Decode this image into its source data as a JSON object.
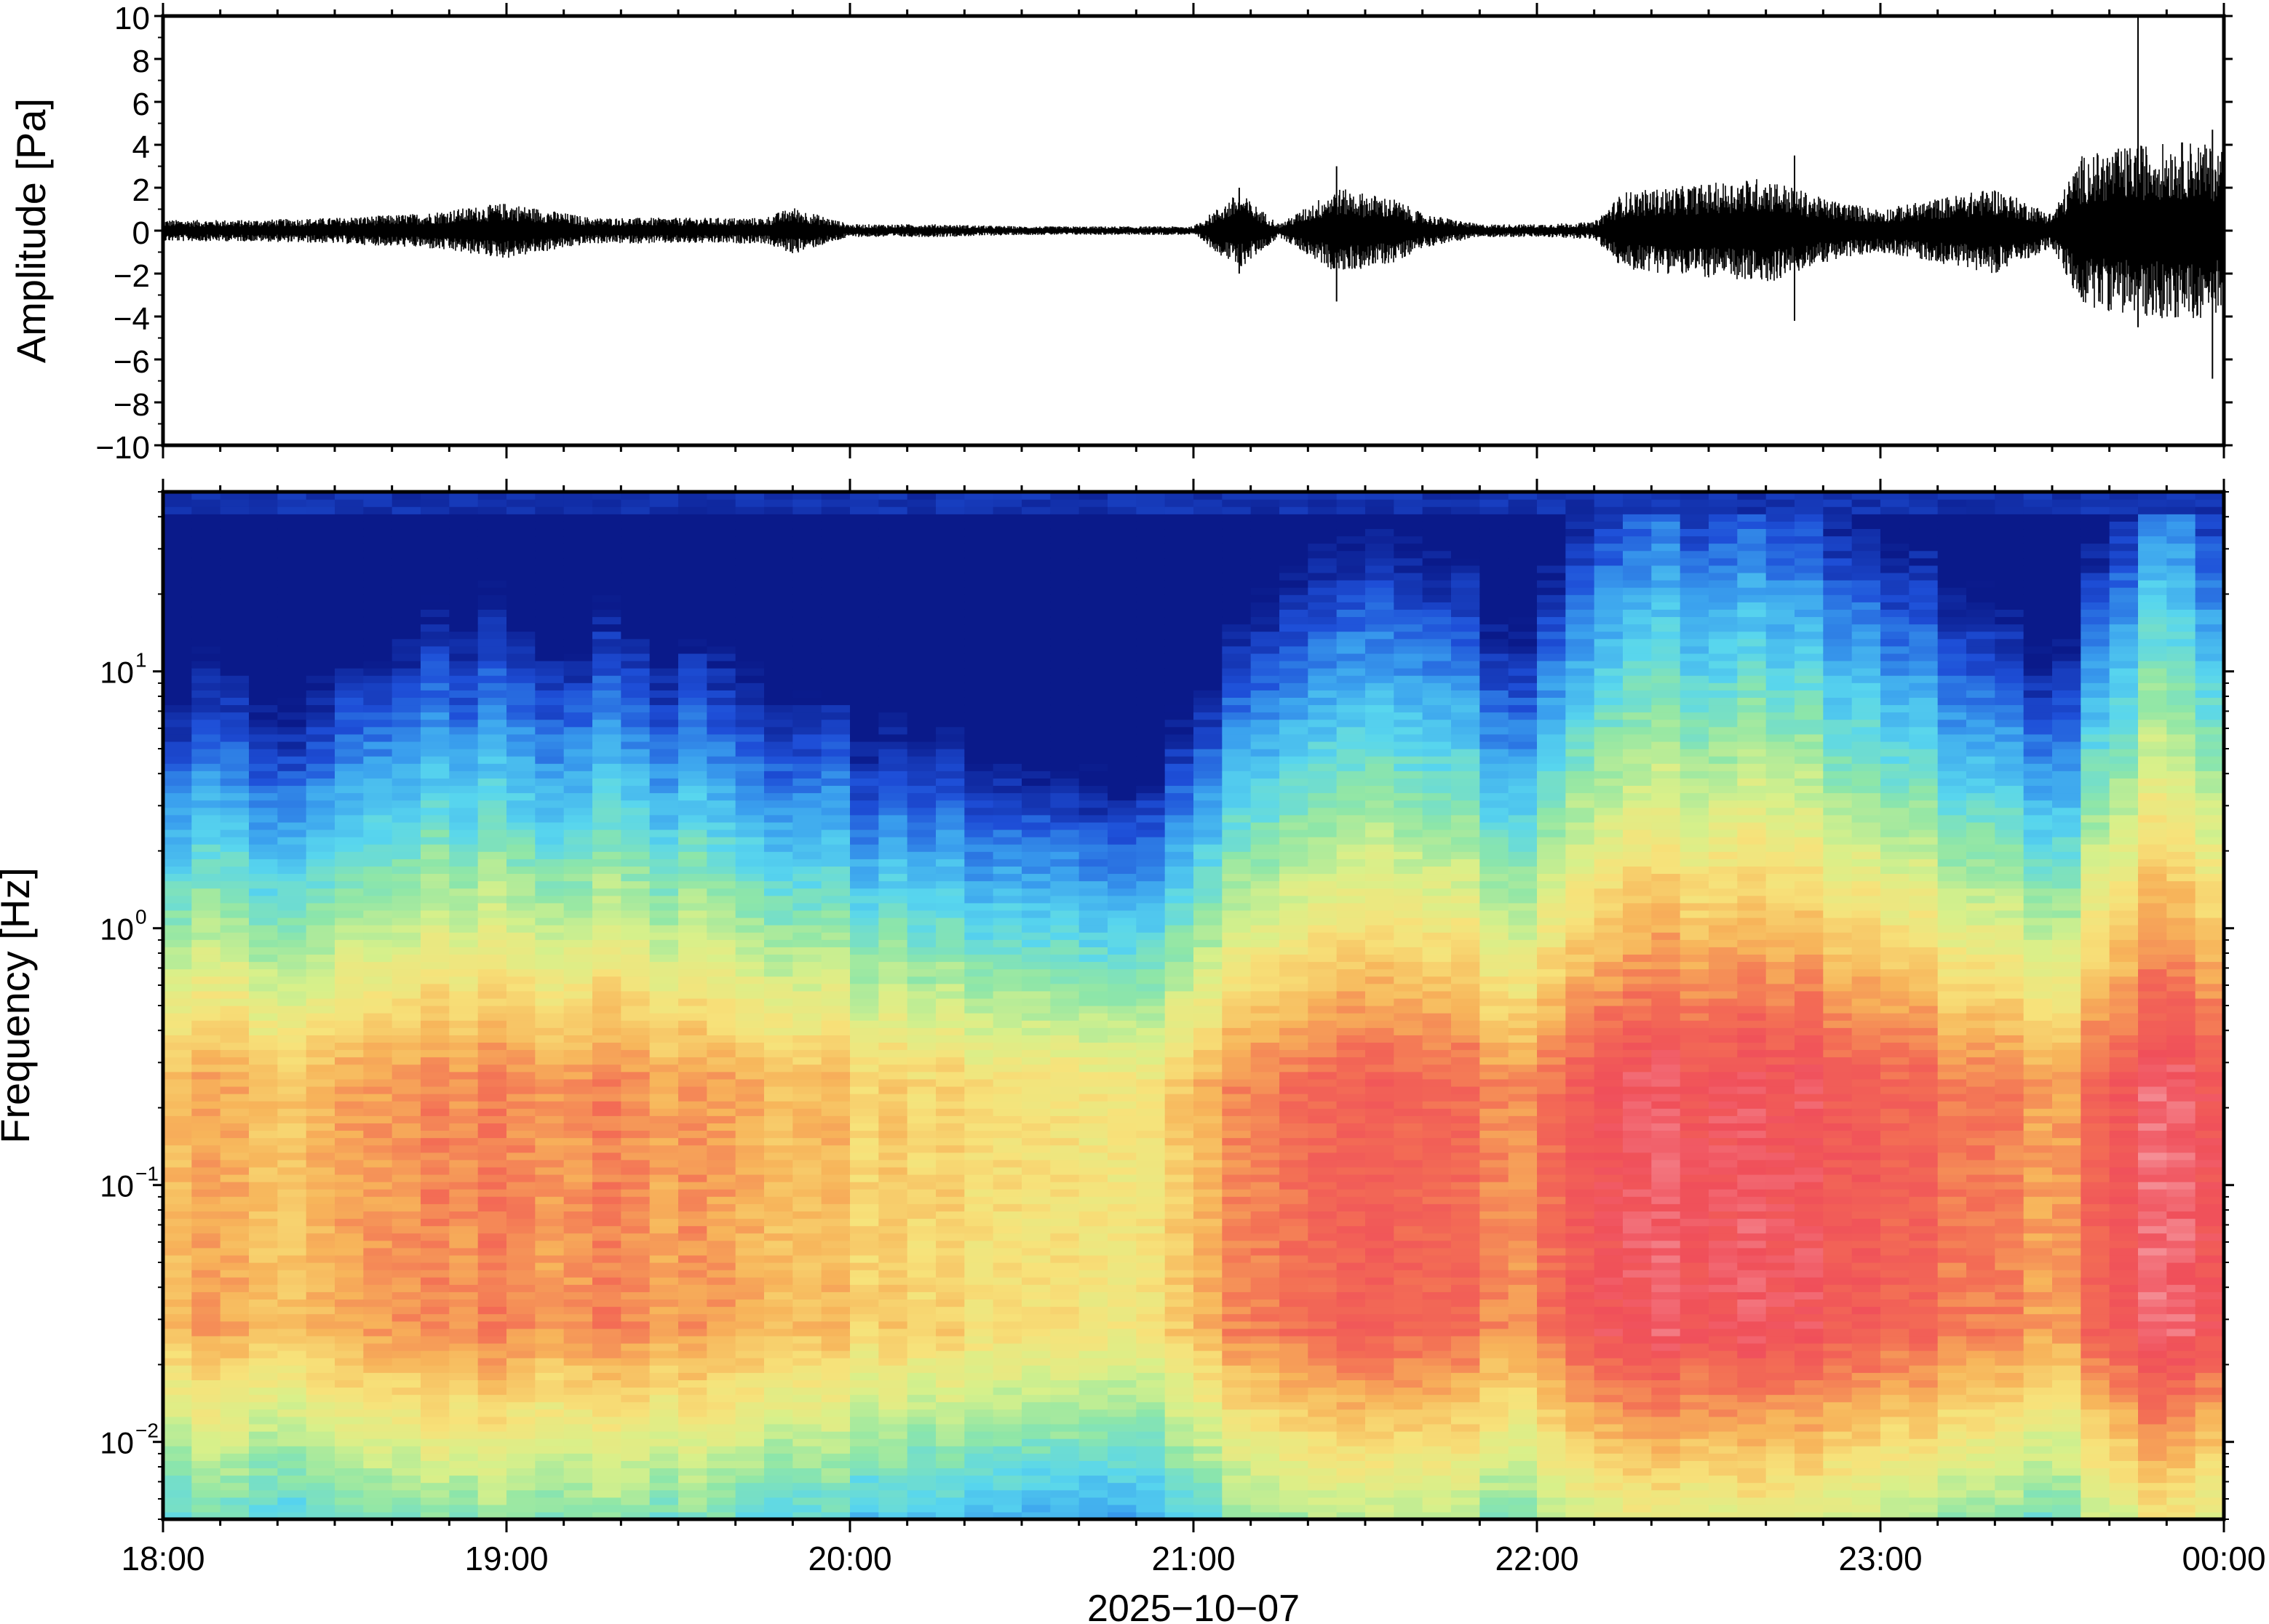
{
  "chart_data": [
    {
      "type": "line",
      "title": "",
      "ylabel": "Amplitude [Pa]",
      "xlabel": "",
      "ylim": [
        -10,
        10
      ],
      "yticks": [
        -10,
        -8,
        -6,
        -4,
        -2,
        0,
        2,
        4,
        6,
        8,
        10
      ],
      "ytick_labels": [
        "−10",
        "−8",
        "−6",
        "−4",
        "−2",
        "0",
        "2",
        "4",
        "6",
        "8",
        "10"
      ],
      "xlim": [
        "18:00",
        "00:00"
      ],
      "grid": false,
      "series": [
        {
          "color": "#000000",
          "envelope": {
            "x": [
              "18:00",
              "18:15",
              "18:30",
              "18:45",
              "19:00",
              "19:15",
              "19:30",
              "19:45",
              "19:50",
              "20:00",
              "20:15",
              "20:30",
              "20:45",
              "21:00",
              "21:08",
              "21:15",
              "21:25",
              "21:35",
              "21:40",
              "21:50",
              "22:00",
              "22:10",
              "22:15",
              "22:30",
              "22:40",
              "22:50",
              "23:00",
              "23:10",
              "23:20",
              "23:30",
              "23:35",
              "23:45",
              "23:55",
              "23:59"
            ],
            "amplitude": [
              0.5,
              0.5,
              0.6,
              0.8,
              1.3,
              0.6,
              0.6,
              0.6,
              1.1,
              0.3,
              0.3,
              0.2,
              0.2,
              0.2,
              1.8,
              0.3,
              2.0,
              1.5,
              0.8,
              0.3,
              0.3,
              0.4,
              1.8,
              2.2,
              2.5,
              1.5,
              1.0,
              1.5,
              2.0,
              0.8,
              3.5,
              4.0,
              4.2,
              3.8
            ]
          },
          "spikes": [
            {
              "x": "21:08",
              "min": -2.0,
              "max": 2.0
            },
            {
              "x": "21:25",
              "min": -3.3,
              "max": 3.0
            },
            {
              "x": "22:45",
              "min": -4.2,
              "max": 3.5
            },
            {
              "x": "23:45",
              "min": -4.5,
              "max": 10.0
            },
            {
              "x": "23:58",
              "min": -6.9,
              "max": 4.7
            }
          ]
        }
      ]
    },
    {
      "type": "heatmap",
      "title": "",
      "ylabel": "Frequency [Hz]",
      "xlabel": "2025−10−07",
      "yscale": "log",
      "ylim": [
        0.005,
        50
      ],
      "yticks": [
        0.01,
        0.1,
        1,
        10
      ],
      "ytick_labels": [
        {
          "base": "10",
          "exp": "−2"
        },
        {
          "base": "10",
          "exp": "−1"
        },
        {
          "base": "10",
          "exp": "0"
        },
        {
          "base": "10",
          "exp": "1"
        }
      ],
      "xticks": [
        "18:00",
        "19:00",
        "20:00",
        "21:00",
        "22:00",
        "23:00",
        "00:00"
      ],
      "xlim": [
        "18:00",
        "00:00"
      ],
      "grid": false,
      "colormap": "rainbow (blue = low power, red = high power)",
      "colors": [
        "#0a1a8a",
        "#1e4fd8",
        "#3aa0ee",
        "#58d6ee",
        "#8ee6a8",
        "#d8f08a",
        "#f7e27a",
        "#f7b45a",
        "#f36d55",
        "#f04f5a",
        "#f6a0a6"
      ],
      "intensity_profile": {
        "note_units": "relative power 0-1 per frequency band over time",
        "time": [
          "18:00",
          "18:30",
          "19:00",
          "19:30",
          "20:00",
          "20:30",
          "20:50",
          "21:05",
          "21:15",
          "21:30",
          "21:45",
          "22:00",
          "22:10",
          "22:30",
          "23:00",
          "23:30",
          "23:45",
          "00:00"
        ],
        "activity": [
          0.45,
          0.45,
          0.6,
          0.5,
          0.4,
          0.3,
          0.2,
          0.55,
          0.7,
          0.75,
          0.7,
          0.55,
          0.8,
          0.85,
          0.75,
          0.5,
          0.85,
          0.85
        ]
      }
    }
  ]
}
